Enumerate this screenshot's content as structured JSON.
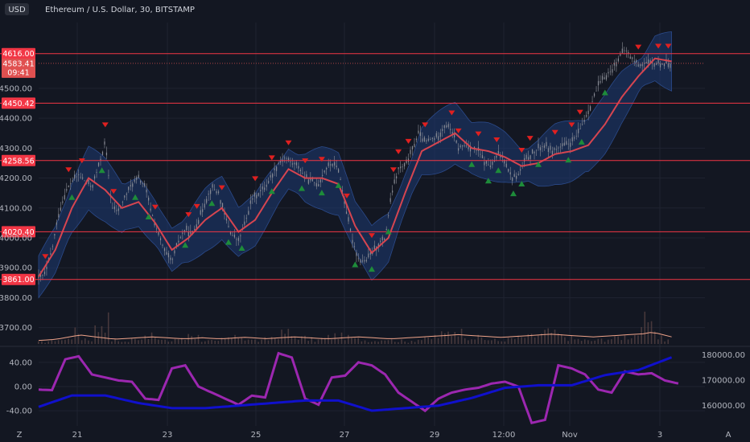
{
  "header": {
    "currency": "USD",
    "title": "Ethereum / U.S. Dollar, 30, BITSTAMP"
  },
  "footer": {
    "left_icon_label": "Z",
    "right_icon_label": "A"
  },
  "colors": {
    "background": "#131722",
    "grid": "#1f2330",
    "level_line": "#f23645",
    "basis": "#d64550",
    "band_fill": "#1e3a73",
    "candle": "#8a8d96",
    "volume": "#5a4444",
    "volume_ma": "#f0a48a",
    "sell_marker": "#e02020",
    "buy_marker": "#1e8c3a",
    "oscillator": "#9c27b0",
    "obv": "#1010cc",
    "current_price_bg": "#e05050"
  },
  "chart_data": [
    {
      "type": "line",
      "name": "price-pane",
      "ylim": [
        3640,
        4720
      ],
      "y_ticks": [
        3700.0,
        3800.0,
        3900.0,
        4000.0,
        4100.0,
        4200.0,
        4300.0,
        4400.0,
        4500.0
      ],
      "y_tick_labels": [
        "3700.00",
        "3800.00",
        "3900.00",
        "4000.00",
        "4100.00",
        "4200.00",
        "4300.00",
        "4400.00",
        "4500.00"
      ],
      "x_ticks": [
        "21",
        "23",
        "25",
        "27",
        "29",
        "12:00",
        "Nov",
        "3"
      ],
      "horizontal_levels": [
        4616.0,
        4450.42,
        4258.56,
        4020.4,
        3861.0
      ],
      "horizontal_level_labels": [
        "4616.00",
        "4450.42",
        "4258.56",
        "4020.40",
        "3861.00"
      ],
      "current_price": 4583.41,
      "current_price_label": "4583.41",
      "countdown_label": "09:41",
      "series": [
        {
          "name": "close",
          "x": [
            0,
            4,
            8,
            12,
            16,
            20,
            24,
            28,
            32,
            36,
            40,
            44,
            48,
            52,
            56,
            60,
            64,
            68,
            72,
            76,
            80,
            84,
            88,
            92,
            96,
            100,
            104,
            108,
            112,
            116,
            120,
            124,
            128,
            132,
            136,
            140,
            144,
            148,
            152,
            156,
            160,
            164,
            168,
            172,
            176,
            180,
            184,
            188,
            192,
            196,
            200,
            204,
            208,
            212,
            216,
            220,
            224,
            228,
            232,
            236,
            240,
            244,
            248,
            252,
            256,
            260,
            264,
            268,
            272,
            276,
            280,
            284,
            288,
            292,
            296,
            300,
            304,
            308,
            312,
            316,
            320,
            324,
            328,
            332,
            336,
            340,
            344,
            348,
            352,
            356,
            360,
            364,
            368,
            372,
            376,
            380,
            384,
            388,
            392,
            396,
            400
          ],
          "values": [
            3865,
            3880,
            3960,
            4080,
            4150,
            4190,
            4210,
            4190,
            4170,
            4240,
            4320,
            4100,
            4090,
            4140,
            4180,
            4200,
            4170,
            4080,
            4010,
            3950,
            3920,
            3990,
            4030,
            4010,
            4060,
            4120,
            4170,
            4150,
            4070,
            4010,
            3990,
            4050,
            4130,
            4150,
            4170,
            4210,
            4250,
            4270,
            4250,
            4240,
            4200,
            4190,
            4180,
            4230,
            4250,
            4230,
            4110,
            4000,
            3930,
            3920,
            3950,
            3980,
            4000,
            4150,
            4230,
            4240,
            4290,
            4350,
            4320,
            4330,
            4340,
            4380,
            4360,
            4300,
            4310,
            4300,
            4290,
            4250,
            4240,
            4280,
            4260,
            4200,
            4210,
            4260,
            4280,
            4300,
            4310,
            4290,
            4300,
            4310,
            4320,
            4350,
            4400,
            4450,
            4510,
            4540,
            4560,
            4600,
            4630,
            4600,
            4580,
            4583,
            4583,
            4583,
            4583,
            4583,
            4583,
            4583,
            4583,
            4583,
            4583
          ]
        },
        {
          "name": "basis",
          "x": [
            0,
            10,
            20,
            30,
            40,
            50,
            60,
            70,
            80,
            90,
            100,
            110,
            120,
            130,
            140,
            150,
            160,
            170,
            180,
            190,
            200,
            210,
            220,
            230,
            240,
            250,
            260,
            270,
            280,
            290,
            300,
            310,
            320,
            330,
            340,
            350,
            360,
            370,
            380
          ],
          "values": [
            3870,
            3960,
            4100,
            4200,
            4160,
            4100,
            4120,
            4050,
            3960,
            4000,
            4060,
            4100,
            4020,
            4060,
            4150,
            4230,
            4200,
            4200,
            4180,
            4040,
            3950,
            4000,
            4150,
            4290,
            4320,
            4350,
            4300,
            4290,
            4270,
            4240,
            4250,
            4280,
            4290,
            4310,
            4380,
            4470,
            4540,
            4600,
            4590
          ]
        }
      ],
      "sell_markers_x": [
        4,
        18,
        26,
        40,
        45,
        70,
        90,
        95,
        110,
        130,
        140,
        150,
        160,
        170,
        185,
        200,
        213,
        216,
        222,
        232,
        248,
        252,
        264,
        275,
        290,
        295,
        310,
        320,
        325,
        360,
        372,
        378
      ],
      "buy_markers_x": [
        20,
        38,
        58,
        66,
        88,
        104,
        114,
        122,
        140,
        158,
        170,
        180,
        190,
        200,
        210,
        260,
        270,
        276,
        285,
        290,
        300,
        318,
        326,
        340
      ]
    },
    {
      "type": "bar",
      "name": "volume",
      "note_series": "volume bars with moving-average line",
      "values": [
        5,
        8,
        12,
        10,
        20,
        30,
        15,
        12,
        40,
        60,
        10,
        8,
        6,
        12,
        18,
        25,
        20,
        10,
        8,
        14,
        12,
        30,
        20,
        10,
        8,
        6,
        12,
        16,
        20,
        14,
        10,
        8,
        12,
        18,
        26,
        30,
        20,
        16,
        12,
        10,
        14,
        18,
        22,
        20,
        16,
        12,
        10,
        8,
        12,
        14,
        10,
        8,
        6,
        10,
        12,
        14,
        20,
        24,
        30,
        40,
        30,
        20,
        16,
        12,
        10,
        8,
        12,
        14,
        16,
        18,
        20,
        24,
        30,
        26,
        20,
        16,
        12,
        10,
        8,
        10,
        12,
        14,
        18,
        20,
        24,
        30,
        60,
        40,
        20,
        10
      ],
      "ma_values": [
        8,
        9,
        10,
        12,
        15,
        18,
        20,
        18,
        16,
        14,
        12,
        11,
        12,
        13,
        14,
        15,
        16,
        15,
        14,
        13,
        12,
        12,
        13,
        14,
        13,
        12,
        12,
        13,
        14,
        15,
        14,
        13,
        12,
        13,
        14,
        15,
        16,
        15,
        14,
        13,
        12,
        12,
        13,
        14,
        15,
        16,
        15,
        14,
        13,
        12,
        12,
        13,
        14,
        15,
        16,
        17,
        18,
        19,
        20,
        21,
        20,
        19,
        18,
        17,
        16,
        15,
        16,
        17,
        18,
        19,
        20,
        21,
        22,
        21,
        20,
        19,
        18,
        17,
        16,
        17,
        18,
        19,
        20,
        21,
        22,
        23,
        26,
        24,
        20,
        16
      ]
    },
    {
      "type": "line",
      "name": "oscillator-pane",
      "ylim_left": [
        -65,
        65
      ],
      "left_ticks": [
        40.0,
        0.0,
        -40.0
      ],
      "left_tick_labels": [
        "40.00",
        "0.00",
        "-40.00"
      ],
      "ylim_right": [
        152000,
        183000
      ],
      "right_ticks": [
        180000.0,
        170000.0,
        160000.0
      ],
      "right_tick_labels": [
        "180000.00",
        "170000.00",
        "160000.00"
      ],
      "series": [
        {
          "name": "oscillator",
          "x": [
            0,
            8,
            16,
            24,
            32,
            40,
            48,
            56,
            64,
            72,
            80,
            88,
            96,
            104,
            112,
            120,
            128,
            136,
            144,
            152,
            160,
            168,
            176,
            184,
            192,
            200,
            208,
            216,
            224,
            232,
            240,
            248,
            256,
            264,
            272,
            280,
            288,
            296,
            304,
            312,
            320,
            328,
            336,
            344,
            352,
            360,
            368,
            376,
            384
          ],
          "values": [
            -5,
            -6,
            45,
            50,
            20,
            15,
            10,
            8,
            -20,
            -22,
            30,
            35,
            0,
            -10,
            -20,
            -30,
            -15,
            -18,
            55,
            48,
            -20,
            -30,
            15,
            18,
            40,
            35,
            20,
            -10,
            -25,
            -40,
            -20,
            -10,
            -5,
            -2,
            5,
            8,
            0,
            -60,
            -55,
            35,
            30,
            20,
            -5,
            -10,
            25,
            20,
            22,
            10,
            5
          ]
        },
        {
          "name": "obv",
          "x": [
            0,
            20,
            40,
            60,
            80,
            100,
            120,
            140,
            160,
            180,
            200,
            220,
            240,
            260,
            280,
            300,
            320,
            340,
            360,
            380
          ],
          "values_right": [
            159500,
            164000,
            164000,
            161000,
            159000,
            159000,
            160000,
            161000,
            162000,
            162000,
            158000,
            159000,
            160000,
            163000,
            167000,
            168000,
            168000,
            172000,
            174000,
            179000
          ]
        }
      ]
    }
  ]
}
